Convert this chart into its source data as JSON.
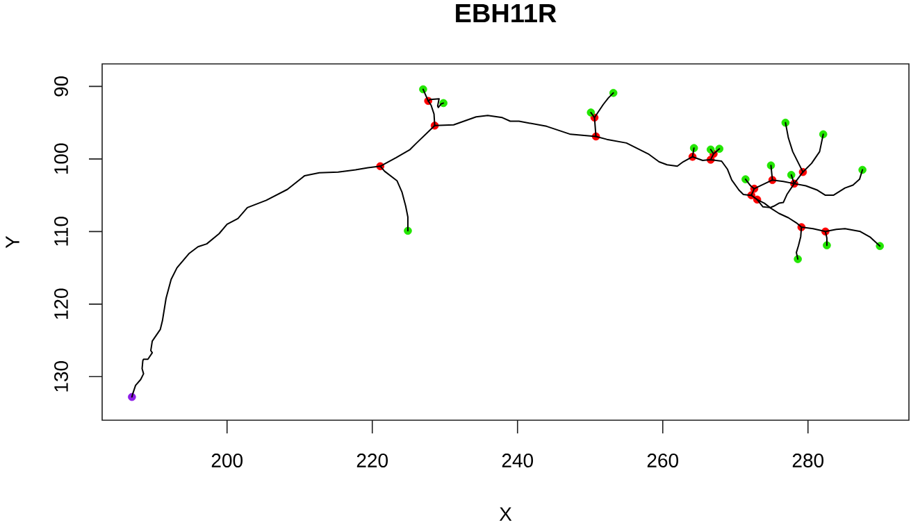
{
  "chart_data": {
    "type": "line",
    "title": "EBH11R",
    "xlabel": "X",
    "ylabel": "Y",
    "xlim": [
      182.8,
      293.9
    ],
    "ylim": [
      136.0,
      86.9
    ],
    "xticks": [
      200,
      220,
      240,
      260,
      280
    ],
    "yticks": [
      90,
      100,
      110,
      120,
      130
    ],
    "series": [
      {
        "type": "scatter",
        "marker": "circle",
        "color": "#8e1ee8",
        "x": [
          186.9
        ],
        "values": [
          132.8
        ]
      },
      {
        "type": "scatter",
        "marker": "circle",
        "color": "#ff0000",
        "x": [
          221.1,
          228.6,
          227.7,
          250.8,
          250.6,
          264.1,
          266.6,
          267.0,
          272.2,
          272.6,
          273.0,
          275.1,
          278.1,
          279.3,
          279.1,
          282.4
        ],
        "values": [
          101.0,
          95.4,
          92.0,
          96.9,
          94.3,
          99.7,
          100.1,
          99.3,
          105.0,
          104.1,
          105.6,
          102.9,
          103.4,
          101.8,
          109.4,
          110.0
        ]
      },
      {
        "type": "scatter",
        "marker": "circle",
        "color": "#22e600",
        "x": [
          224.9,
          227.0,
          229.8,
          250.1,
          253.2,
          264.3,
          266.6,
          267.8,
          271.4,
          274.9,
          277.7,
          276.9,
          282.1,
          287.5,
          289.9,
          278.6,
          282.6
        ],
        "values": [
          109.9,
          90.4,
          92.3,
          93.6,
          90.9,
          98.5,
          98.7,
          98.6,
          102.8,
          100.9,
          102.2,
          95.0,
          96.6,
          101.5,
          112.0,
          113.8,
          111.9
        ]
      },
      {
        "color": "#000000",
        "x": [
          186.9,
          187.0,
          187.4,
          188.1,
          188.5,
          188.3,
          188.4,
          188.5,
          189.1,
          189.7,
          189.5,
          189.7,
          190.8,
          191.1,
          191.6,
          192.3,
          193.1,
          194.8,
          196.0,
          197.2,
          198.9,
          200.0,
          201.5,
          202.8,
          205.4,
          208.3,
          210.7,
          212.7,
          215.3,
          217.7,
          219.4,
          221.1,
          223.3,
          225.2,
          226.1,
          228.6,
          231.2,
          234.3,
          235.9,
          237.9,
          239.0,
          240.2,
          244.0,
          247.3,
          250.8,
          252.3,
          255.0,
          258.0,
          259.5,
          260.6,
          262.0,
          262.8,
          264.1,
          265.5,
          266.6,
          268.1,
          268.9,
          269.5,
          270.5,
          271.1,
          271.9,
          272.2,
          273.0,
          274.0,
          274.9,
          276.0,
          277.3,
          278.4,
          279.1,
          280.7,
          282.4,
          283.9,
          285.1,
          287.2,
          288.6,
          289.9
        ],
        "values": [
          132.8,
          132.4,
          131.2,
          130.4,
          129.6,
          128.9,
          127.8,
          127.6,
          127.6,
          126.7,
          126.4,
          125.1,
          123.5,
          122.3,
          119.2,
          116.6,
          115.0,
          113.0,
          112.1,
          111.7,
          110.3,
          109.0,
          108.2,
          106.7,
          105.7,
          104.2,
          102.3,
          101.9,
          101.8,
          101.5,
          101.2,
          101.0,
          99.8,
          98.7,
          97.8,
          95.4,
          95.3,
          94.2,
          94.0,
          94.3,
          94.8,
          94.8,
          95.5,
          96.6,
          96.9,
          97.3,
          97.8,
          99.3,
          100.4,
          100.8,
          101.0,
          100.4,
          99.7,
          100.2,
          100.1,
          100.3,
          101.4,
          102.9,
          104.3,
          104.9,
          105.0,
          105.0,
          105.6,
          106.1,
          106.8,
          107.5,
          108.1,
          108.8,
          109.4,
          109.6,
          110.0,
          109.7,
          109.6,
          110.0,
          110.8,
          112.0
        ]
      },
      {
        "color": "#000000",
        "x": [
          221.1,
          221.7,
          223.4,
          224.1,
          224.6,
          224.9,
          224.9
        ],
        "values": [
          101.0,
          101.7,
          103.0,
          104.6,
          106.5,
          108.0,
          109.9
        ]
      },
      {
        "color": "#000000",
        "x": [
          228.6,
          228.5,
          228.1,
          227.7,
          227.0
        ],
        "values": [
          95.4,
          93.8,
          92.6,
          92.0,
          90.4
        ]
      },
      {
        "color": "#000000",
        "x": [
          227.7,
          228.0,
          229.2,
          229.0,
          229.1,
          229.5,
          229.8
        ],
        "values": [
          92.0,
          91.8,
          91.7,
          92.7,
          92.9,
          92.4,
          92.3
        ]
      },
      {
        "color": "#000000",
        "x": [
          250.8,
          250.6,
          250.1
        ],
        "values": [
          96.9,
          94.3,
          93.6
        ]
      },
      {
        "color": "#000000",
        "x": [
          250.6,
          251.8,
          252.5,
          253.2
        ],
        "values": [
          94.3,
          92.5,
          91.6,
          90.9
        ]
      },
      {
        "color": "#000000",
        "x": [
          264.1,
          264.3
        ],
        "values": [
          99.7,
          98.5
        ]
      },
      {
        "color": "#000000",
        "x": [
          266.6,
          267.0,
          266.6
        ],
        "values": [
          100.1,
          99.3,
          98.7
        ]
      },
      {
        "color": "#000000",
        "x": [
          267.0,
          267.8
        ],
        "values": [
          99.3,
          98.6
        ]
      },
      {
        "color": "#000000",
        "x": [
          272.2,
          272.6,
          272.1,
          271.4
        ],
        "values": [
          105.0,
          104.1,
          103.7,
          102.8
        ]
      },
      {
        "color": "#000000",
        "x": [
          272.6,
          275.1,
          276.6,
          278.1,
          279.7,
          281.3,
          282.4,
          283.5,
          285.1,
          286.2,
          287.1,
          287.5
        ],
        "values": [
          104.1,
          102.9,
          103.1,
          103.4,
          103.7,
          104.3,
          105.0,
          105.0,
          104.0,
          103.6,
          102.8,
          101.5
        ]
      },
      {
        "color": "#000000",
        "x": [
          275.1,
          274.9
        ],
        "values": [
          102.9,
          100.9
        ]
      },
      {
        "color": "#000000",
        "x": [
          278.1,
          277.7
        ],
        "values": [
          103.4,
          102.2
        ]
      },
      {
        "color": "#000000",
        "x": [
          273.0,
          273.8,
          274.8,
          275.3,
          276.0,
          276.6,
          277.1,
          278.1,
          279.3,
          278.7,
          277.9,
          277.3,
          276.9
        ],
        "values": [
          105.6,
          106.6,
          106.7,
          106.5,
          106.1,
          106.0,
          104.9,
          103.4,
          101.8,
          100.6,
          99.0,
          97.1,
          95.0
        ]
      },
      {
        "color": "#000000",
        "x": [
          279.3,
          280.5,
          281.6,
          282.1
        ],
        "values": [
          101.8,
          100.6,
          99.0,
          96.6
        ]
      },
      {
        "color": "#000000",
        "x": [
          279.1,
          279.0,
          278.7,
          278.4,
          278.6
        ],
        "values": [
          109.4,
          110.7,
          111.9,
          112.9,
          113.8
        ]
      },
      {
        "color": "#000000",
        "x": [
          282.4,
          282.6,
          282.6
        ],
        "values": [
          110.0,
          110.9,
          111.9
        ]
      }
    ]
  }
}
